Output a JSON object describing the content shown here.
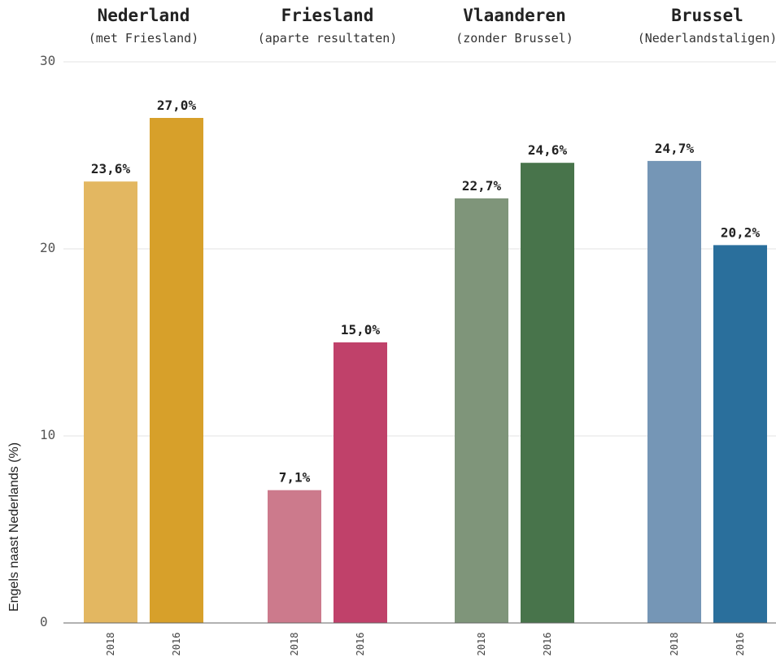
{
  "chart_data": {
    "type": "bar",
    "ylabel": "Engels naast Nederlands (%)",
    "ylim": [
      0,
      30
    ],
    "yticks": [
      0,
      10,
      20,
      30
    ],
    "grid": true,
    "groups": [
      {
        "title": "Nederland",
        "subtitle": "(met Friesland)",
        "bars": [
          {
            "year": "2018",
            "value": 23.6,
            "label": "23,6%",
            "color": "#e3b761"
          },
          {
            "year": "2016",
            "value": 27.0,
            "label": "27,0%",
            "color": "#d7a02a"
          }
        ]
      },
      {
        "title": "Friesland",
        "subtitle": "(aparte resultaten)",
        "bars": [
          {
            "year": "2018",
            "value": 7.1,
            "label": "7,1%",
            "color": "#cc7a8c"
          },
          {
            "year": "2016",
            "value": 15.0,
            "label": "15,0%",
            "color": "#c0416a"
          }
        ]
      },
      {
        "title": "Vlaanderen",
        "subtitle": "(zonder Brussel)",
        "bars": [
          {
            "year": "2018",
            "value": 22.7,
            "label": "22,7%",
            "color": "#7f957a"
          },
          {
            "year": "2016",
            "value": 24.6,
            "label": "24,6%",
            "color": "#48744b"
          }
        ]
      },
      {
        "title": "Brussel",
        "subtitle": "(Nederlandstaligen)",
        "bars": [
          {
            "year": "2018",
            "value": 24.7,
            "label": "24,7%",
            "color": "#7596b6"
          },
          {
            "year": "2016",
            "value": 20.2,
            "label": "20,2%",
            "color": "#2a6f9c"
          }
        ]
      }
    ]
  }
}
